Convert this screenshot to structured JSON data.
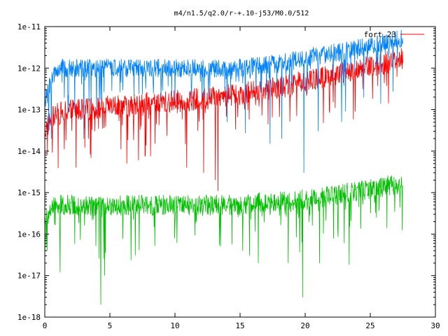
{
  "chart_data": {
    "type": "line",
    "title": "m4/n1.5/q2.0/r-+.10-j53/M0.0/512",
    "xlabel": "",
    "ylabel": "",
    "xlim": [
      0,
      30
    ],
    "ylim": [
      1e-18,
      1e-11
    ],
    "y_scale": "log",
    "grid": false,
    "legend_position": "top-right",
    "x_ticks": [
      0,
      5,
      10,
      15,
      20,
      25,
      30
    ],
    "x_tick_labels": [
      "0",
      "5",
      "10",
      "15",
      "20",
      "25",
      "30"
    ],
    "y_ticks": [
      1e-18,
      1e-17,
      1e-16,
      1e-15,
      1e-14,
      1e-13,
      1e-12,
      1e-11
    ],
    "y_tick_labels": [
      "1e-18",
      "1e-17",
      "1e-16",
      "1e-15",
      "1e-14",
      "1e-13",
      "1e-12",
      "1e-11"
    ],
    "series": [
      {
        "name": "fort.23",
        "color": "#ff0000",
        "x": [
          0.0,
          0.5,
          1.0,
          2.0,
          3.0,
          4.0,
          5.0,
          6.0,
          7.0,
          8.0,
          9.0,
          10.0,
          11.0,
          12.0,
          13.0,
          14.0,
          15.0,
          16.0,
          17.0,
          18.0,
          19.0,
          20.0,
          21.0,
          22.0,
          23.0,
          24.0,
          25.0,
          26.0,
          27.0,
          27.5
        ],
        "values": [
          3e-14,
          6e-14,
          8e-14,
          1e-13,
          1e-13,
          1.1e-13,
          1.2e-13,
          1.2e-13,
          1.3e-13,
          1.4e-13,
          1.5e-13,
          1.6e-13,
          1.7e-13,
          1.8e-13,
          2e-13,
          2.2e-13,
          2.4e-13,
          2.7e-13,
          3e-13,
          3.4e-13,
          4e-13,
          5e-13,
          5.5e-13,
          6.5e-13,
          7.5e-13,
          9e-13,
          1.1e-12,
          1.3e-12,
          1.6e-12,
          1.8e-12
        ],
        "dip_x": [
          0.2,
          2.4,
          6.3,
          7.2,
          10.9,
          12.2,
          13.1,
          13.3
        ],
        "dip_values": [
          8e-15,
          4e-15,
          5e-15,
          6e-15,
          4e-15,
          3e-15,
          2e-15,
          1.1e-15
        ]
      },
      {
        "color": "#0080ff",
        "x": [
          0.0,
          0.5,
          1.0,
          2.0,
          3.0,
          4.0,
          5.0,
          6.0,
          7.0,
          8.0,
          9.0,
          10.0,
          11.0,
          12.0,
          13.0,
          14.0,
          15.0,
          16.0,
          17.0,
          18.0,
          19.0,
          20.0,
          21.0,
          22.0,
          23.0,
          24.0,
          25.0,
          26.0,
          27.0,
          27.5
        ],
        "values": [
          1.5e-13,
          5e-13,
          1e-12,
          1e-12,
          1e-12,
          1e-12,
          1e-12,
          1e-12,
          1e-12,
          1e-12,
          1e-12,
          1e-12,
          1e-12,
          1e-12,
          1e-12,
          1e-12,
          1e-12,
          1.1e-12,
          1.2e-12,
          1.3e-12,
          1.5e-12,
          1.8e-12,
          2e-12,
          2.3e-12,
          2.6e-12,
          3e-12,
          3.6e-12,
          4.2e-12,
          5e-12,
          5.5e-12
        ],
        "dip_x": [
          0.3,
          0.5,
          3.0,
          14.0,
          17.3,
          18.2,
          19.9,
          21.0,
          22.8
        ],
        "dip_values": [
          3e-14,
          2e-14,
          2e-14,
          5e-14,
          1.5e-14,
          2e-14,
          3e-15,
          3e-14,
          5e-14
        ]
      },
      {
        "color": "#00c000",
        "x": [
          0.0,
          0.5,
          1.0,
          2.0,
          3.0,
          4.0,
          5.0,
          6.0,
          7.0,
          8.0,
          9.0,
          10.0,
          11.0,
          12.0,
          13.0,
          14.0,
          15.0,
          16.0,
          17.0,
          18.0,
          19.0,
          20.0,
          21.0,
          22.0,
          23.0,
          24.0,
          25.0,
          26.0,
          27.0,
          27.5
        ],
        "values": [
          2e-16,
          4e-16,
          5e-16,
          5e-16,
          5e-16,
          4.5e-16,
          4.5e-16,
          5e-16,
          5e-16,
          5e-16,
          5e-16,
          5e-16,
          5e-16,
          5e-16,
          5e-16,
          5e-16,
          5e-16,
          5.5e-16,
          6e-16,
          6e-16,
          6.5e-16,
          7e-16,
          7.5e-16,
          8.5e-16,
          9.5e-16,
          1.1e-15,
          1.2e-15,
          1.4e-15,
          1.6e-15,
          1.7e-15
        ],
        "dip_x": [
          0.1,
          4.3,
          4.6,
          13.5,
          15.2,
          16.4,
          18.7,
          19.8,
          21.1
        ],
        "dip_values": [
          5e-17,
          2e-18,
          1e-17,
          5e-17,
          4e-17,
          2e-17,
          2e-17,
          3e-18,
          2e-17
        ]
      }
    ]
  }
}
